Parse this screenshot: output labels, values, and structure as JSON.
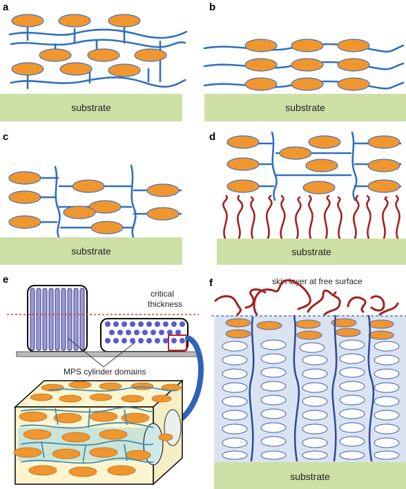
{
  "panels": {
    "a": {
      "label": "a",
      "substrate": "substrate"
    },
    "b": {
      "label": "b",
      "substrate": "substrate"
    },
    "c": {
      "label": "c",
      "substrate": "substrate"
    },
    "d": {
      "label": "d",
      "substrate": "substrate"
    },
    "e": {
      "label": "e",
      "critical_thickness": [
        "critical",
        "thickness"
      ],
      "domains_label": "MPS cylinder domains"
    },
    "f": {
      "label": "f",
      "skin_label": "skin layer at free surface",
      "substrate": "substrate"
    }
  },
  "colors": {
    "mesogen": "#f0962e",
    "mesogen_stroke": "#4a6fb4",
    "backbone": "#2f6fc0",
    "substrate": "#cde0a6",
    "brush": "#a31f1f",
    "cylinder": "#9a9ad8",
    "dot": "#5a5ad0",
    "film": "#dbe3f2",
    "box": "#fdf5d0",
    "dashed_line": "#e53030"
  }
}
